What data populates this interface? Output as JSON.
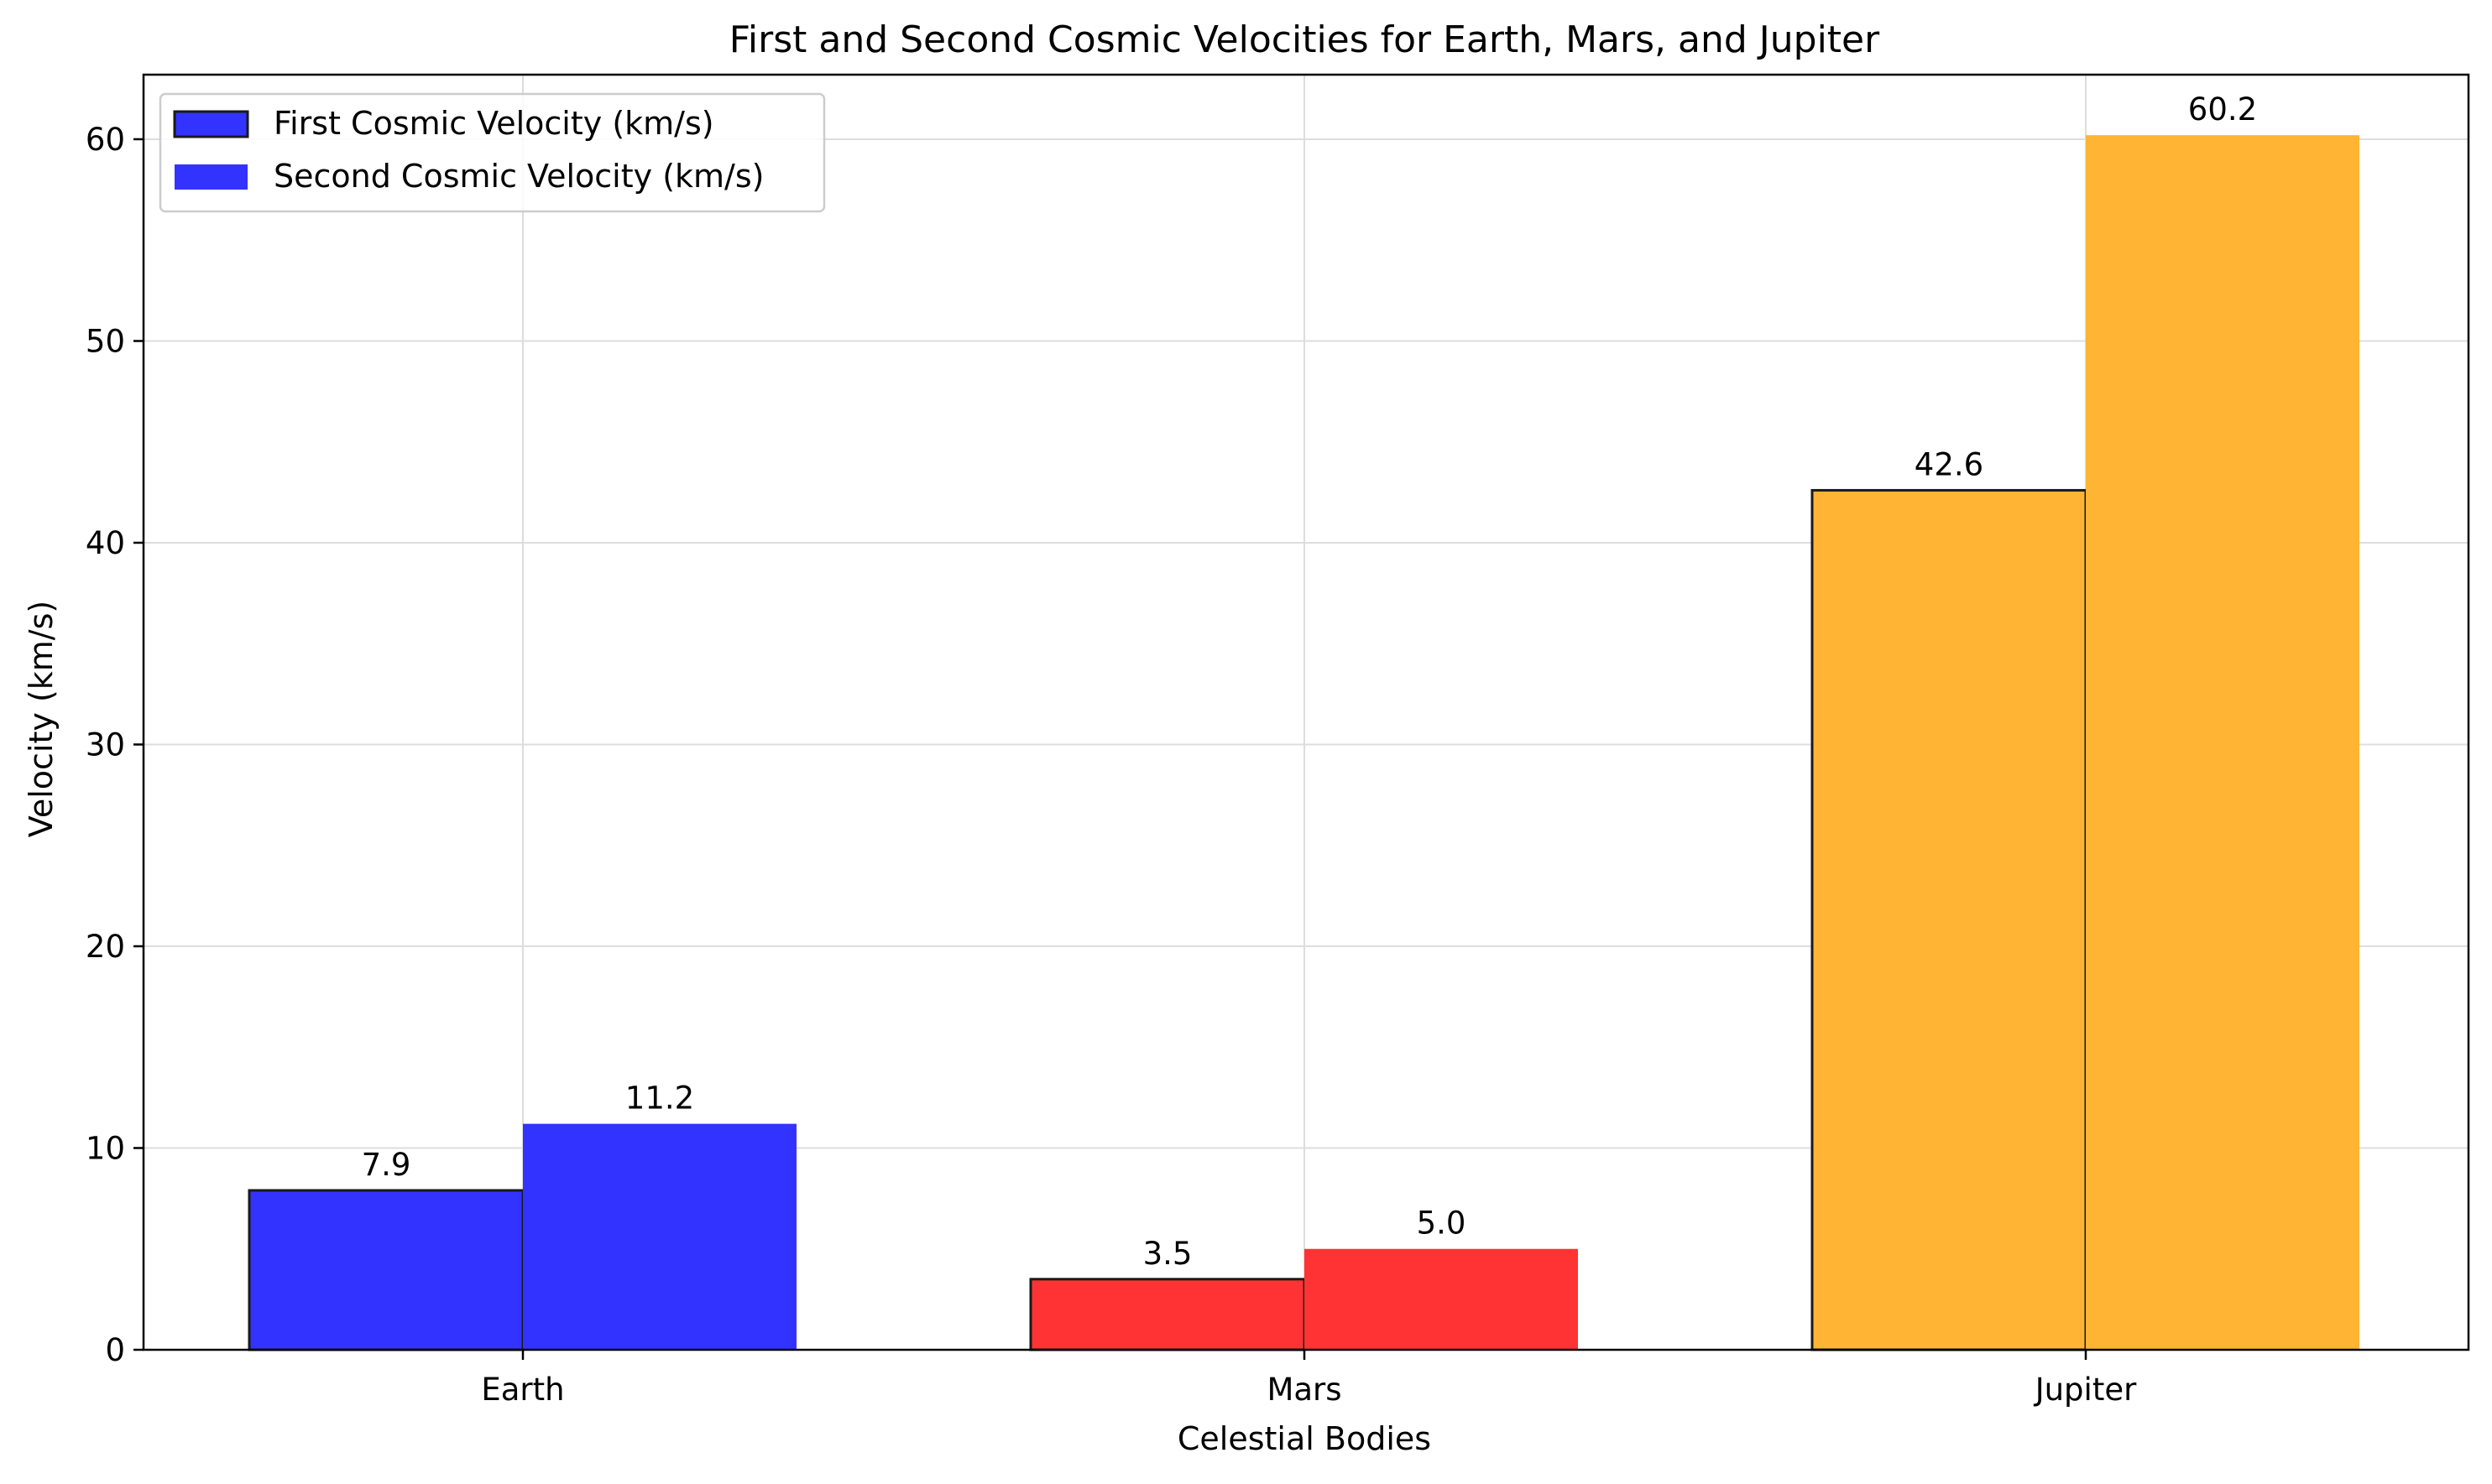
{
  "chart_data": {
    "type": "bar",
    "title": "First and Second Cosmic Velocities for Earth, Mars, and Jupiter",
    "xlabel": "Celestial Bodies",
    "ylabel": "Velocity (km/s)",
    "categories": [
      "Earth",
      "Mars",
      "Jupiter"
    ],
    "series": [
      {
        "name": "First Cosmic Velocity (km/s)",
        "values": [
          7.9,
          3.5,
          42.6
        ],
        "outlined": true
      },
      {
        "name": "Second Cosmic Velocity (km/s)",
        "values": [
          11.2,
          5.0,
          60.2
        ],
        "outlined": false
      }
    ],
    "data_labels": [
      [
        "7.9",
        "3.5",
        "42.6"
      ],
      [
        "11.2",
        "5.0",
        "60.2"
      ]
    ],
    "category_colors": [
      "#3333ff",
      "#ff3333",
      "#ffb533"
    ],
    "legend_colors": [
      "#3333ff",
      "#3333ff"
    ],
    "ylim": [
      0,
      63.2
    ],
    "yticks": [
      0,
      10,
      20,
      30,
      40,
      50,
      60
    ],
    "grid": true,
    "legend_position": "top-left"
  }
}
